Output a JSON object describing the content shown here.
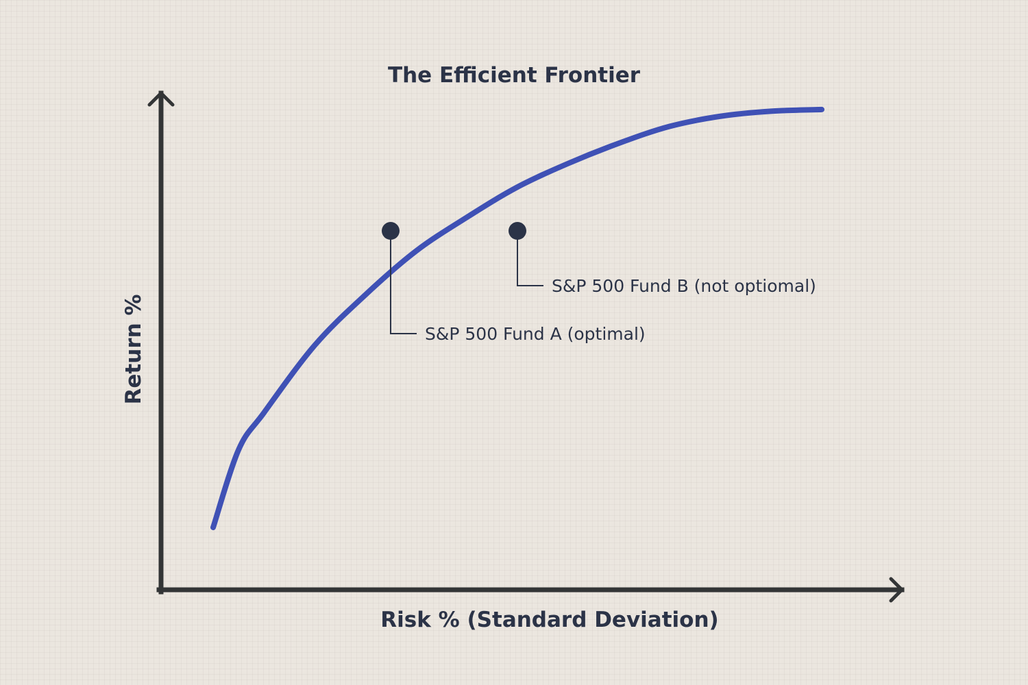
{
  "chart_data": {
    "type": "line",
    "title": "The Efficient Frontier",
    "xlabel": "Risk % (Standard Deviation)",
    "ylabel": "Return %",
    "grid": false,
    "series": [
      {
        "x": [
          0,
          0.5,
          1,
          2,
          3,
          4,
          5,
          6,
          7,
          8,
          9,
          10,
          11,
          12
        ],
        "y": [
          0,
          2.3,
          3.4,
          5.4,
          6.9,
          8.2,
          9.2,
          10.1,
          10.8,
          11.4,
          11.9,
          12.2,
          12.35,
          12.4
        ]
      }
    ],
    "points": [
      {
        "id": "fund-a",
        "x": 3.5,
        "y": 8.8,
        "label": "S&P 500 Fund A (optimal)"
      },
      {
        "id": "fund-b",
        "x": 6.0,
        "y": 8.8,
        "label": "S&P 500 Fund B (not optiomal)"
      }
    ],
    "colors": {
      "frontier": "#3f51b5",
      "axis": "#333536",
      "point": "#2b3347",
      "text": "#2b3347"
    }
  }
}
